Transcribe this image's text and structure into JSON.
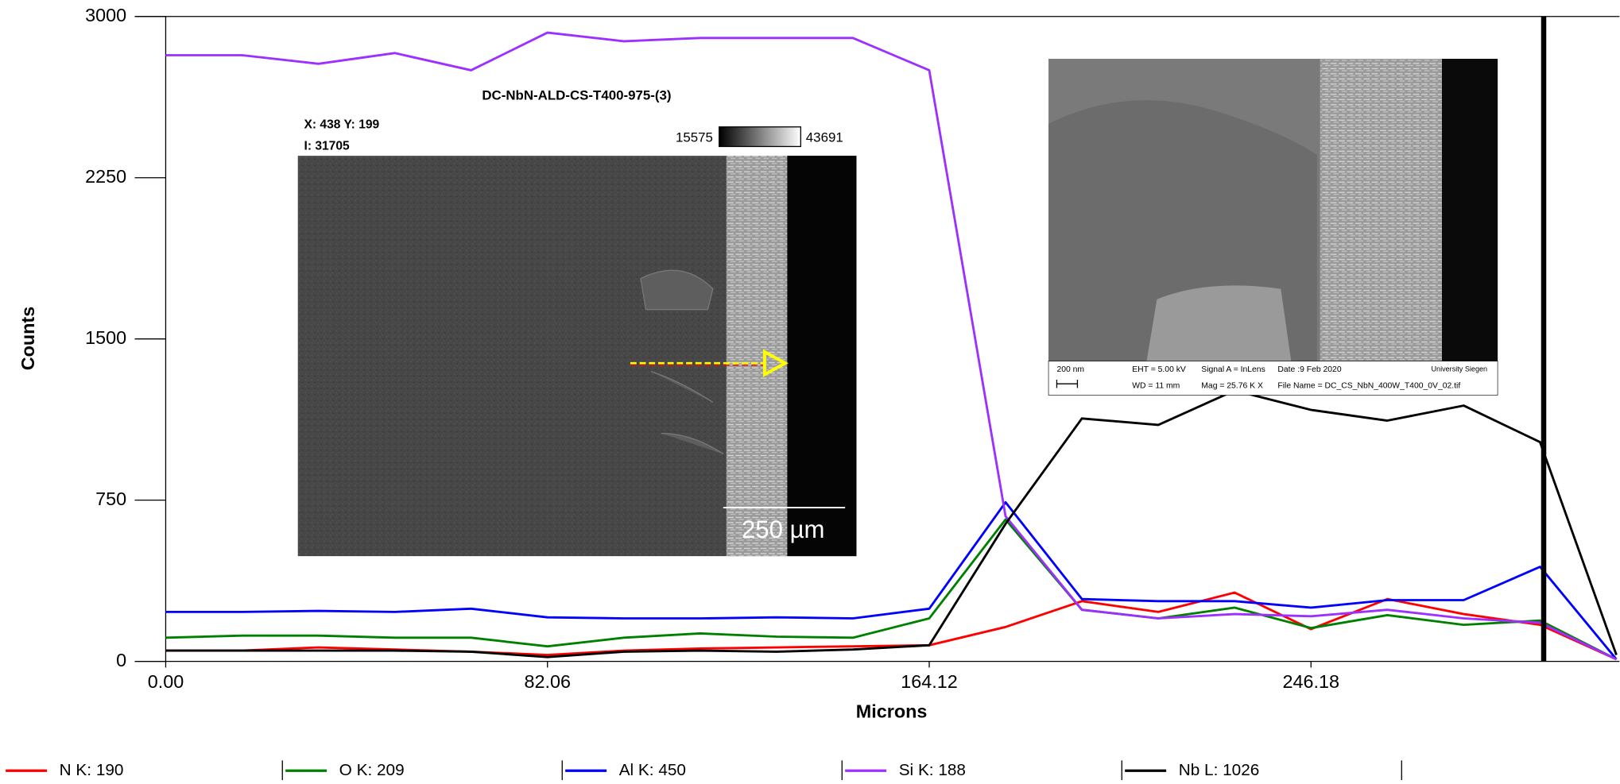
{
  "chart_data": {
    "type": "line",
    "x_label": "Microns",
    "y_label": "Counts",
    "x": [
      0,
      16.41,
      32.82,
      49.23,
      65.64,
      82.06,
      98.47,
      114.88,
      131.3,
      147.71,
      164.12,
      180.53,
      196.94,
      213.36,
      229.77,
      246.18,
      262.59,
      279.0,
      295.42,
      311.83
    ],
    "series": [
      {
        "name": "N K: 190",
        "color": "#ff0000",
        "values": [
          50,
          50,
          65,
          55,
          45,
          30,
          50,
          60,
          65,
          70,
          75,
          160,
          280,
          230,
          320,
          150,
          290,
          220,
          170,
          10
        ]
      },
      {
        "name": "O K: 209",
        "color": "#008000",
        "values": [
          110,
          120,
          120,
          110,
          110,
          70,
          110,
          130,
          115,
          110,
          200,
          660,
          240,
          200,
          250,
          155,
          215,
          170,
          190,
          10
        ]
      },
      {
        "name": "Al K: 450",
        "color": "#0000ff",
        "values": [
          230,
          230,
          235,
          230,
          245,
          205,
          200,
          200,
          205,
          200,
          245,
          740,
          290,
          280,
          280,
          250,
          285,
          285,
          440,
          10
        ]
      },
      {
        "name": "Si K: 188",
        "color": "#9b30ff",
        "values": [
          2820,
          2820,
          2780,
          2830,
          2750,
          2925,
          2885,
          2900,
          2900,
          2900,
          2750,
          675,
          240,
          200,
          220,
          210,
          240,
          200,
          180,
          10
        ]
      },
      {
        "name": "Nb L: 1026",
        "color": "#000000",
        "values": [
          50,
          50,
          50,
          50,
          45,
          20,
          45,
          50,
          45,
          55,
          75,
          640,
          1130,
          1100,
          1260,
          1170,
          1120,
          1190,
          1020,
          30
        ]
      }
    ],
    "xlim": [
      0,
      311.83
    ],
    "ylim": [
      0,
      3000
    ],
    "xticks": [
      {
        "value": 0,
        "label": "0.00"
      },
      82.06,
      164.12,
      246.18
    ],
    "yticks": [
      0,
      750,
      1500,
      2250,
      3000
    ],
    "cursor_x": 296.2,
    "legend": "bottom"
  },
  "insets": [
    {
      "title": "DC-NbN-ALD-CS-T400-975-(3)",
      "position": "X: 438 Y: 199",
      "intensity": "I: 31705",
      "scale_min": "15575",
      "scale_max": "43691",
      "scale_bar": "250 µm"
    },
    {
      "scale_bar": "200 nm",
      "eht": "EHT =  5.00 kV",
      "wd": "WD =  11 mm",
      "signal": "Signal A = InLens",
      "mag": "Mag =  25.76 K X",
      "date": "Date :9 Feb 2020",
      "file": "File Name = DC_CS_NbN_400W_T400_0V_02.tif",
      "institution": "University Siegen"
    }
  ]
}
